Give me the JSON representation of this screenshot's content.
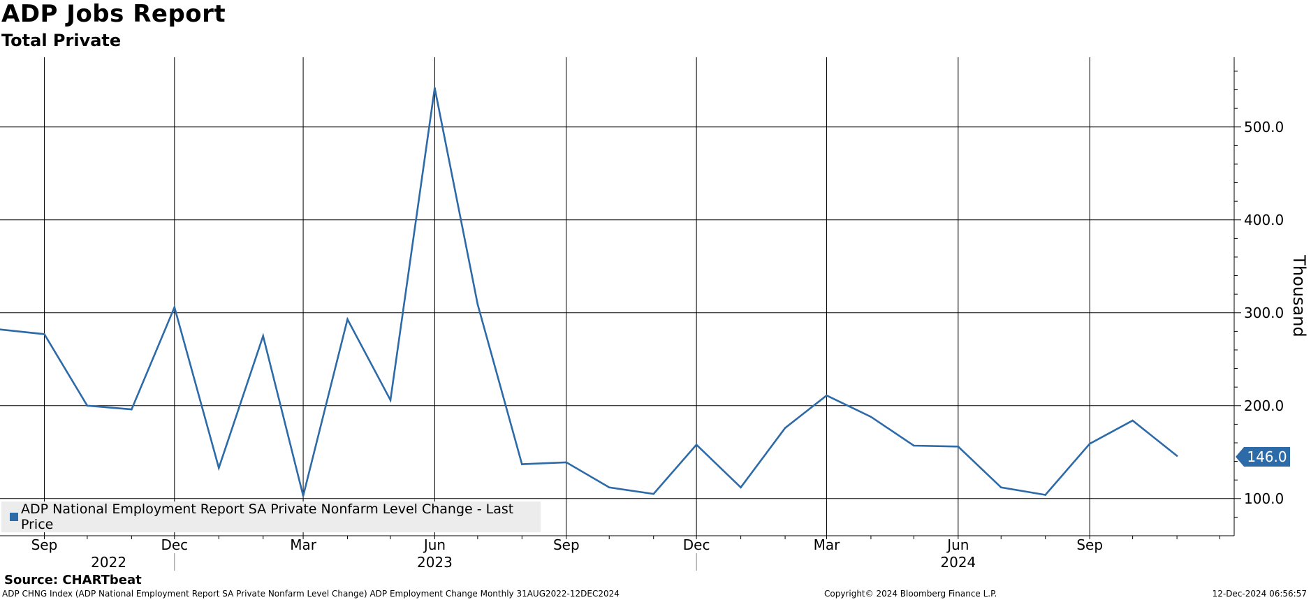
{
  "chart_data": {
    "type": "line",
    "title": "ADP Jobs Report",
    "subtitle": "Total Private",
    "ylabel": "Thousand",
    "ylim": [
      60,
      575
    ],
    "yticks": [
      100,
      200,
      300,
      400,
      500
    ],
    "ytick_labels": [
      "100.0",
      "200.0",
      "300.0",
      "400.0",
      "500.0"
    ],
    "xrange": [
      "2022-08-01",
      "2024-12-11"
    ],
    "x_month_ticks": [
      {
        "date": "2022-09-01",
        "label": "Sep"
      },
      {
        "date": "2022-12-01",
        "label": "Dec"
      },
      {
        "date": "2023-03-01",
        "label": "Mar"
      },
      {
        "date": "2023-06-01",
        "label": "Jun"
      },
      {
        "date": "2023-09-01",
        "label": "Sep"
      },
      {
        "date": "2023-12-01",
        "label": "Dec"
      },
      {
        "date": "2024-03-01",
        "label": "Mar"
      },
      {
        "date": "2024-06-01",
        "label": "Jun"
      },
      {
        "date": "2024-09-01",
        "label": "Sep"
      }
    ],
    "x_year_labels": [
      {
        "date": "2022-10-16",
        "label": "2022"
      },
      {
        "date": "2023-06-01",
        "label": "2023"
      },
      {
        "date": "2024-06-01",
        "label": "2024"
      }
    ],
    "year_separators": [
      "2022-12-01",
      "2023-12-01"
    ],
    "grid": true,
    "legend_position": "bottom-left",
    "series": [
      {
        "name": "ADP National Employment Report SA Private Nonfarm Level Change - Last Price",
        "color": "#2d6aa8",
        "last_value_label": "146.0",
        "x": [
          "2022-08-01",
          "2022-09-01",
          "2022-10-01",
          "2022-11-01",
          "2022-12-01",
          "2023-01-01",
          "2023-02-01",
          "2023-03-01",
          "2023-04-01",
          "2023-05-01",
          "2023-06-01",
          "2023-07-01",
          "2023-08-01",
          "2023-09-01",
          "2023-10-01",
          "2023-11-01",
          "2023-12-01",
          "2024-01-01",
          "2024-02-01",
          "2024-03-01",
          "2024-04-01",
          "2024-05-01",
          "2024-06-01",
          "2024-07-01",
          "2024-08-01",
          "2024-09-01",
          "2024-10-01",
          "2024-11-01"
        ],
        "values": [
          282,
          277,
          200,
          196,
          306,
          133,
          275,
          103,
          293,
          206,
          542,
          309,
          137,
          139,
          112,
          105,
          158,
          112,
          176,
          211,
          188,
          157,
          156,
          112,
          104,
          159,
          184,
          146
        ]
      }
    ]
  },
  "source": "Source: CHARTbeat",
  "footer_left": "ADP CHNG Index (ADP National Employment Report SA Private Nonfarm Level Change) ADP Employment Change  Monthly 31AUG2022-12DEC2024",
  "footer_mid": "Copyright© 2024 Bloomberg Finance L.P.",
  "footer_right": "12-Dec-2024 06:56:57"
}
